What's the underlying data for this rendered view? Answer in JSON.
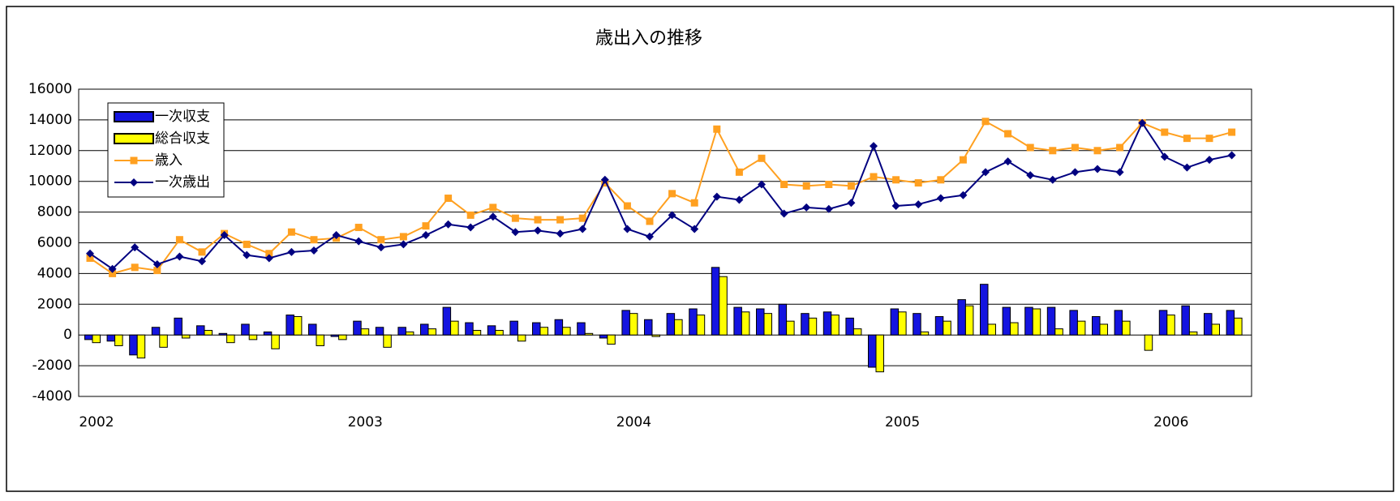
{
  "chart_data": {
    "type": "bar-line",
    "title": "歳出入の推移",
    "categories": [
      "2002",
      null,
      null,
      null,
      null,
      null,
      null,
      null,
      null,
      null,
      null,
      null,
      "2003",
      null,
      null,
      null,
      null,
      null,
      null,
      null,
      null,
      null,
      null,
      null,
      "2004",
      null,
      null,
      null,
      null,
      null,
      null,
      null,
      null,
      null,
      null,
      null,
      "2005",
      null,
      null,
      null,
      null,
      null,
      null,
      null,
      null,
      null,
      null,
      null,
      "2006",
      null,
      null,
      null
    ],
    "series": [
      {
        "name": "一次収支",
        "kind": "bar",
        "color": "#1414e0",
        "values": [
          -300,
          -400,
          -1300,
          500,
          1100,
          600,
          100,
          700,
          200,
          1300,
          700,
          -100,
          900,
          500,
          500,
          700,
          1800,
          800,
          600,
          900,
          800,
          1000,
          800,
          -200,
          1600,
          1000,
          1400,
          1700,
          4400,
          1800,
          1700,
          2000,
          1400,
          1500,
          1100,
          -2100,
          1700,
          1400,
          1200,
          2300,
          3300,
          1800,
          1800,
          1800,
          1600,
          1200,
          1600,
          0,
          1600,
          1900,
          1400,
          1600
        ]
      },
      {
        "name": "総合収支",
        "kind": "bar",
        "color": "#ffff00",
        "values": [
          -500,
          -700,
          -1500,
          -800,
          -200,
          300,
          -500,
          -300,
          -900,
          1200,
          -700,
          -300,
          400,
          -800,
          200,
          400,
          900,
          300,
          300,
          -400,
          500,
          500,
          100,
          -600,
          1400,
          -100,
          1000,
          1300,
          3800,
          1500,
          1400,
          900,
          1100,
          1300,
          400,
          -2400,
          1500,
          200,
          900,
          1900,
          700,
          800,
          1700,
          400,
          900,
          700,
          900,
          -1000,
          1300,
          200,
          700,
          1100
        ]
      },
      {
        "name": "歳入",
        "kind": "line",
        "marker": "square",
        "color": "#ffa020",
        "values": [
          5000,
          4000,
          4400,
          4200,
          6200,
          5400,
          6600,
          5900,
          5300,
          6700,
          6200,
          6300,
          7000,
          6200,
          6400,
          7100,
          8900,
          7800,
          8300,
          7600,
          7500,
          7500,
          7600,
          9900,
          8400,
          7400,
          9200,
          8600,
          13400,
          10600,
          11500,
          9800,
          9700,
          9800,
          9700,
          10300,
          10100,
          9900,
          10100,
          11400,
          13900,
          13100,
          12200,
          12000,
          12200,
          12000,
          12200,
          13800,
          13200,
          12800,
          12800,
          13200
        ]
      },
      {
        "name": "一次歳出",
        "kind": "line",
        "marker": "diamond",
        "color": "#000080",
        "values": [
          5300,
          4300,
          5700,
          4600,
          5100,
          4800,
          6500,
          5200,
          5000,
          5400,
          5500,
          6500,
          6100,
          5700,
          5900,
          6500,
          7200,
          7000,
          7700,
          6700,
          6800,
          6600,
          6900,
          10100,
          6900,
          6400,
          7800,
          6900,
          9000,
          8800,
          9800,
          7900,
          8300,
          8200,
          8600,
          12300,
          8400,
          8500,
          8900,
          9100,
          10600,
          11300,
          10400,
          10100,
          10600,
          10800,
          10600,
          13800,
          11600,
          10900,
          11400,
          11700
        ]
      }
    ],
    "ylim": [
      -4000,
      16000
    ],
    "yticks": [
      -4000,
      -2000,
      0,
      2000,
      4000,
      6000,
      8000,
      10000,
      12000,
      14000,
      16000
    ],
    "grid": true,
    "legend": "upper left"
  }
}
